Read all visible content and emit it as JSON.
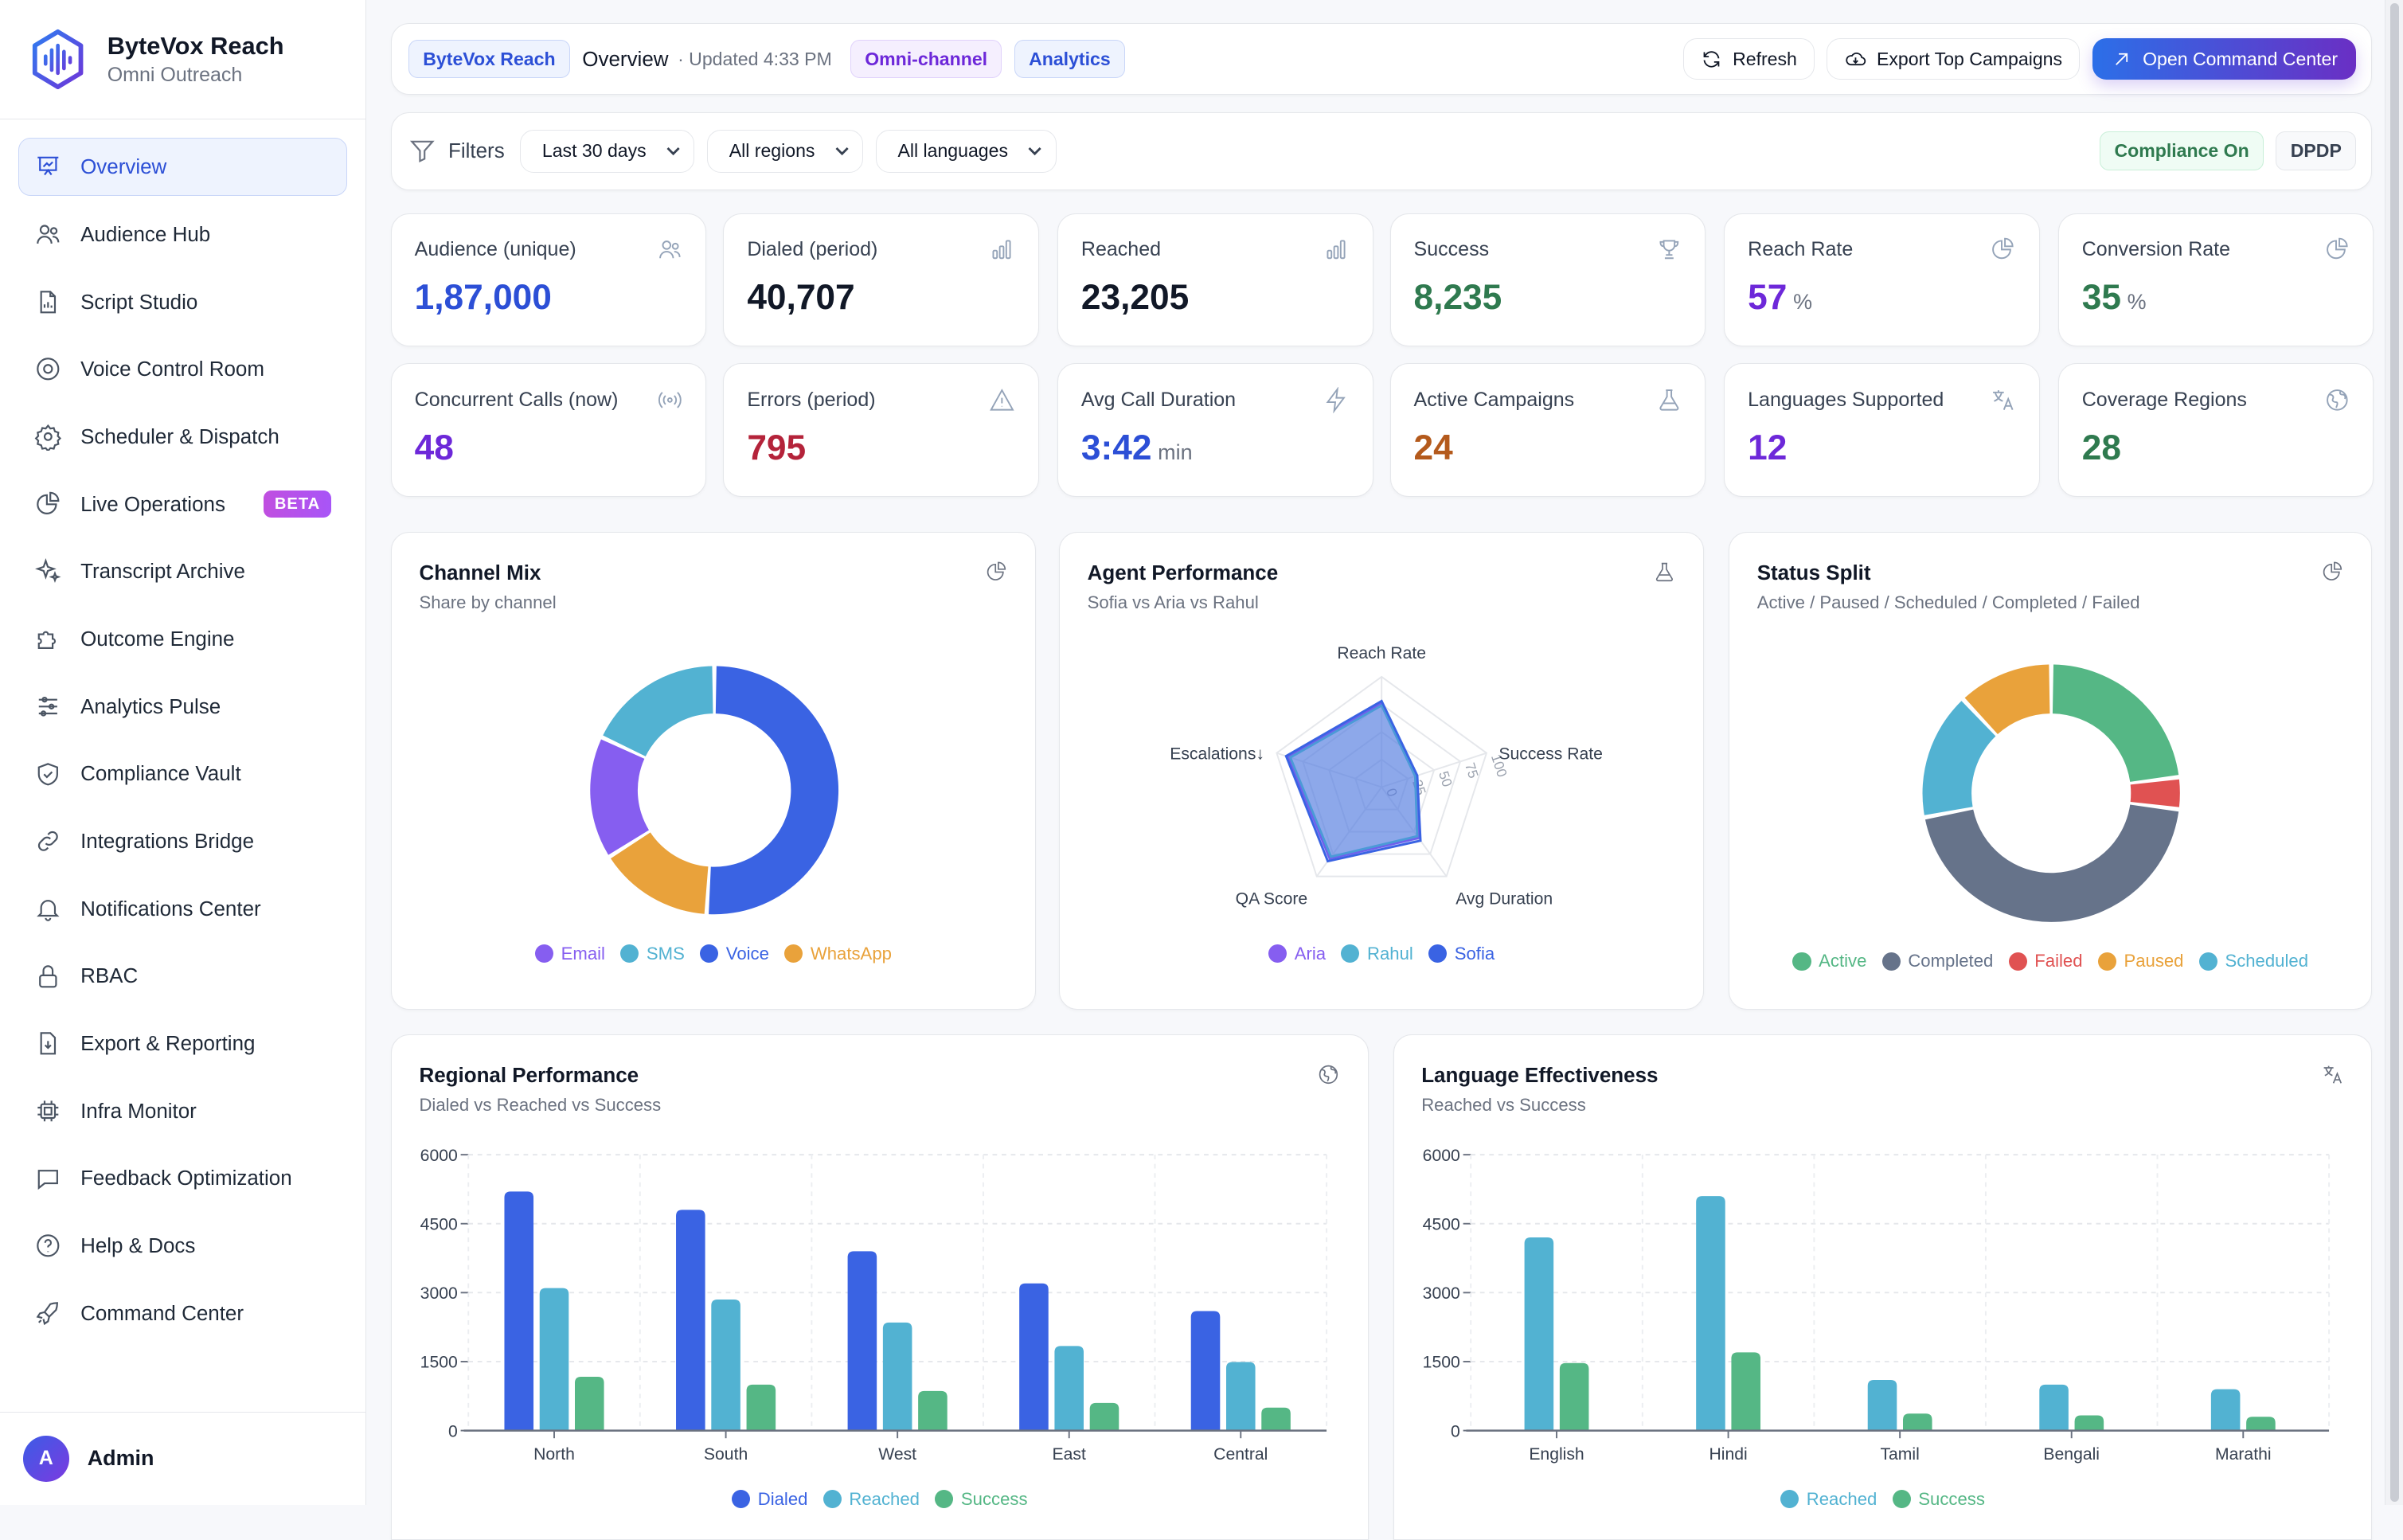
{
  "app": {
    "name": "ByteVox Reach",
    "subtitle": "Omni Outreach"
  },
  "sidebar": {
    "items": [
      {
        "label": "Overview",
        "icon": "presentation-chart-icon",
        "active": true
      },
      {
        "label": "Audience Hub",
        "icon": "users-icon"
      },
      {
        "label": "Script Studio",
        "icon": "document-icon"
      },
      {
        "label": "Voice Control Room",
        "icon": "target-icon"
      },
      {
        "label": "Scheduler & Dispatch",
        "icon": "gear-icon"
      },
      {
        "label": "Live Operations",
        "icon": "pie-chart-icon",
        "badge": "BETA"
      },
      {
        "label": "Transcript Archive",
        "icon": "sparkles-icon"
      },
      {
        "label": "Outcome Engine",
        "icon": "puzzle-icon"
      },
      {
        "label": "Analytics Pulse",
        "icon": "sliders-icon"
      },
      {
        "label": "Compliance Vault",
        "icon": "shield-check-icon"
      },
      {
        "label": "Integrations Bridge",
        "icon": "link-icon"
      },
      {
        "label": "Notifications Center",
        "icon": "bell-icon"
      },
      {
        "label": "RBAC",
        "icon": "lock-icon"
      },
      {
        "label": "Export & Reporting",
        "icon": "file-download-icon"
      },
      {
        "label": "Infra Monitor",
        "icon": "cpu-icon"
      },
      {
        "label": "Feedback Optimization",
        "icon": "chat-bubble-icon"
      },
      {
        "label": "Help & Docs",
        "icon": "help-circle-icon"
      },
      {
        "label": "Command Center",
        "icon": "rocket-icon"
      }
    ],
    "user": {
      "initial": "A",
      "name": "Admin"
    }
  },
  "header": {
    "chip_app": "ByteVox Reach",
    "title": "Overview",
    "updated": "· Updated 4:33 PM",
    "chips": [
      "Omni-channel",
      "Analytics"
    ],
    "refresh_label": "Refresh",
    "export_label": "Export Top Campaigns",
    "command_label": "Open Command Center"
  },
  "filters": {
    "label": "Filters",
    "period": "Last 30 days",
    "region": "All regions",
    "language": "All languages",
    "compliance": "Compliance On",
    "regulation": "DPDP"
  },
  "kpis": [
    {
      "label": "Audience (unique)",
      "value": "1,87,000",
      "color": "#2c4fd6",
      "icon": "users-icon"
    },
    {
      "label": "Dialed (period)",
      "value": "40,707",
      "color": "#111827",
      "icon": "bar-chart-icon"
    },
    {
      "label": "Reached",
      "value": "23,205",
      "color": "#111827",
      "icon": "bar-chart-icon"
    },
    {
      "label": "Success",
      "value": "8,235",
      "color": "#2f7a4f",
      "icon": "trophy-icon"
    },
    {
      "label": "Reach Rate",
      "value": "57",
      "unit": "%",
      "color": "#6d28d9",
      "icon": "pie-chart-icon"
    },
    {
      "label": "Conversion Rate",
      "value": "35",
      "unit": "%",
      "color": "#2f7a4f",
      "icon": "pie-chart-icon"
    },
    {
      "label": "Concurrent Calls (now)",
      "value": "48",
      "color": "#6d28d9",
      "icon": "broadcast-icon"
    },
    {
      "label": "Errors (period)",
      "value": "795",
      "color": "#b4233a",
      "icon": "warning-icon"
    },
    {
      "label": "Avg Call Duration",
      "value": "3:42",
      "unit": "min",
      "color": "#2c4fd6",
      "icon": "bolt-icon"
    },
    {
      "label": "Active Campaigns",
      "value": "24",
      "color": "#b45a1c",
      "icon": "flask-icon"
    },
    {
      "label": "Languages Supported",
      "value": "12",
      "color": "#6d28d9",
      "icon": "translate-icon"
    },
    {
      "label": "Coverage Regions",
      "value": "28",
      "color": "#2f7a4f",
      "icon": "globe-icon"
    }
  ],
  "chart_data": [
    {
      "type": "pie",
      "variant": "donut",
      "title": "Channel Mix",
      "subtitle": "Share by channel",
      "icon": "pie-chart-icon",
      "categories": [
        "Voice",
        "WhatsApp",
        "Email",
        "SMS"
      ],
      "values": [
        51,
        15,
        16,
        18
      ],
      "colors": [
        "#3a63e3",
        "#e9a23b",
        "#865ef0",
        "#52b2d2"
      ],
      "legend": [
        "Email",
        "SMS",
        "Voice",
        "WhatsApp"
      ],
      "legend_placement": "bottom"
    },
    {
      "type": "radar",
      "title": "Agent Performance",
      "subtitle": "Sofia vs Aria vs Rahul",
      "icon": "flask-icon",
      "axes": [
        "Reach Rate",
        "Success Rate",
        "Avg Duration",
        "QA Score",
        "Escalations↓"
      ],
      "ticks": [
        "0",
        "25",
        "50",
        "75",
        "100"
      ],
      "range": [
        0,
        100
      ],
      "series": [
        {
          "name": "Aria",
          "color": "#865ef0",
          "values": [
            76,
            33,
            57,
            80,
            89
          ]
        },
        {
          "name": "Rahul",
          "color": "#52b2d2",
          "values": [
            74,
            32,
            55,
            78,
            87
          ]
        },
        {
          "name": "Sofia",
          "color": "#3a63e3",
          "values": [
            78,
            34,
            60,
            83,
            91
          ]
        }
      ],
      "legend_placement": "bottom"
    },
    {
      "type": "pie",
      "variant": "donut",
      "title": "Status Split",
      "subtitle": "Active / Paused / Scheduled / Completed / Failed",
      "icon": "pie-chart-icon",
      "categories": [
        "Active",
        "Failed",
        "Completed",
        "Scheduled",
        "Paused"
      ],
      "values": [
        23,
        4,
        45,
        16,
        12
      ],
      "colors": [
        "#55b785",
        "#e05252",
        "#66738a",
        "#52b2d2",
        "#e9a23b"
      ],
      "legend": [
        "Active",
        "Completed",
        "Failed",
        "Paused",
        "Scheduled"
      ],
      "legend_placement": "bottom"
    },
    {
      "type": "bar",
      "title": "Regional Performance",
      "subtitle": "Dialed vs Reached vs Success",
      "icon": "globe-icon",
      "categories": [
        "North",
        "South",
        "West",
        "East",
        "Central"
      ],
      "series": [
        {
          "name": "Dialed",
          "color": "#3a63e3",
          "values": [
            5200,
            4800,
            3900,
            3200,
            2600
          ]
        },
        {
          "name": "Reached",
          "color": "#52b2d2",
          "values": [
            3100,
            2850,
            2350,
            1840,
            1490
          ]
        },
        {
          "name": "Success",
          "color": "#55b785",
          "values": [
            1170,
            1000,
            860,
            600,
            500
          ]
        }
      ],
      "ylim": [
        0,
        6000
      ],
      "yticks": [
        "0",
        "1500",
        "3000",
        "4500",
        "6000"
      ],
      "grid": true,
      "legend_placement": "bottom"
    },
    {
      "type": "bar",
      "title": "Language Effectiveness",
      "subtitle": "Reached vs Success",
      "icon": "translate-icon",
      "categories": [
        "English",
        "Hindi",
        "Tamil",
        "Bengali",
        "Marathi"
      ],
      "series": [
        {
          "name": "Reached",
          "color": "#52b2d2",
          "values": [
            4200,
            5100,
            1100,
            1000,
            900
          ]
        },
        {
          "name": "Success",
          "color": "#55b785",
          "values": [
            1470,
            1700,
            370,
            330,
            300
          ]
        }
      ],
      "ylim": [
        0,
        6000
      ],
      "yticks": [
        "0",
        "1500",
        "3000",
        "4500",
        "6000"
      ],
      "grid": true,
      "legend_placement": "bottom"
    }
  ]
}
